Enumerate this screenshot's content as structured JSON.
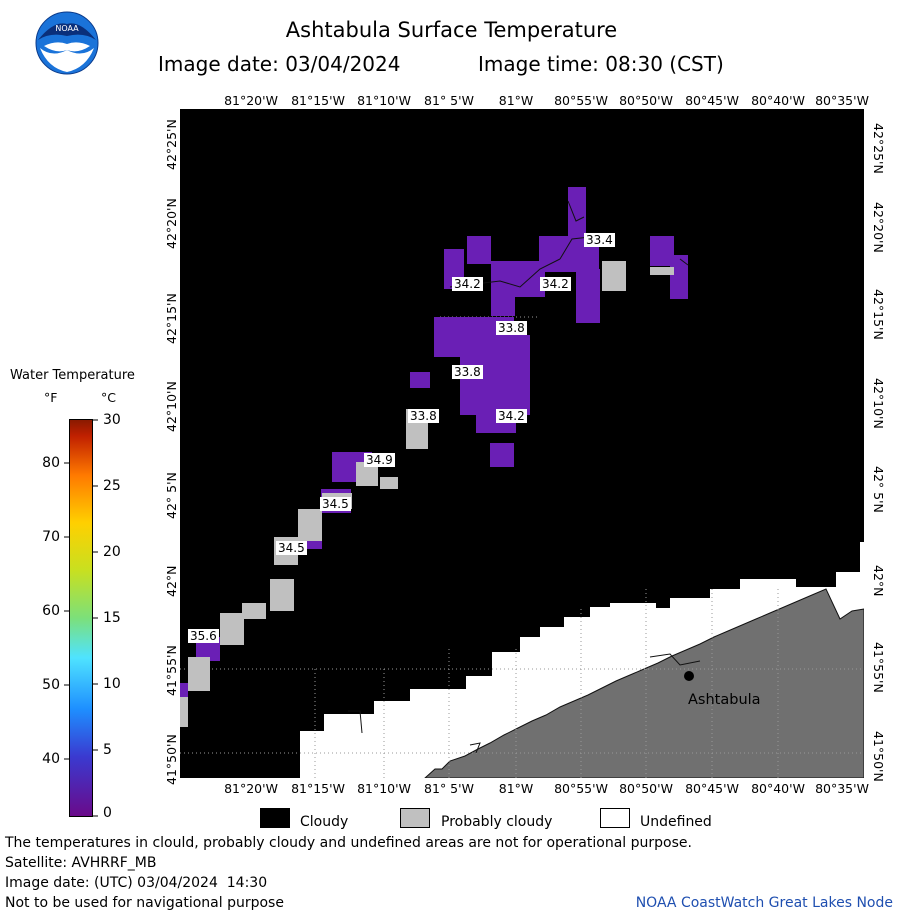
{
  "logo": {
    "text": "NOAA",
    "icon": "noaa-logo-icon"
  },
  "header": {
    "title": "Ashtabula Surface Temperature",
    "image_date": "Image date: 03/04/2024",
    "image_time": "Image time: 08:30 (CST)"
  },
  "axes": {
    "lon_labels": [
      "81°20'W",
      "81°15'W",
      "81°10'W",
      "81° 5'W",
      "81°W",
      "80°55'W",
      "80°50'W",
      "80°45'W",
      "80°40'W",
      "80°35'W"
    ],
    "lat_labels": [
      "42°25'N",
      "42°20'N",
      "42°15'N",
      "42°10'N",
      "42° 5'N",
      "42°N",
      "41°55'N",
      "41°50'N"
    ]
  },
  "map": {
    "city_label": "Ashtabula",
    "temperature_labels": [
      "33.4",
      "34.2",
      "34.2",
      "33.8",
      "33.8",
      "33.8",
      "34.2",
      "34.9",
      "34.5",
      "34.5",
      "35.6"
    ],
    "colors": {
      "cloudy": "#000000",
      "probably_cloudy": "#c0c0c0",
      "undefined": "#ffffff",
      "land": "#707070",
      "water_cold": "#6a1fb5"
    }
  },
  "legend": {
    "title": "Water Temperature",
    "unit_f": "°F",
    "unit_c": "°C",
    "f_ticks": [
      "80",
      "70",
      "60",
      "50",
      "40"
    ],
    "c_ticks": [
      "30",
      "25",
      "20",
      "15",
      "10",
      "5",
      "0"
    ]
  },
  "key": {
    "cloudy": "Cloudy",
    "probably_cloudy": "Probably cloudy",
    "undefined": "Undefined"
  },
  "footer": {
    "disclaimer": "The temperatures in clould, probably cloudy and undefined areas are not for operational purpose.",
    "satellite": "Satellite: AVHRRF_MB",
    "utc_date": "Image date: (UTC) 03/04/2024  14:30",
    "nav_warning": "Not to be used for navigational purpose",
    "credit": "NOAA CoastWatch Great Lakes Node"
  }
}
